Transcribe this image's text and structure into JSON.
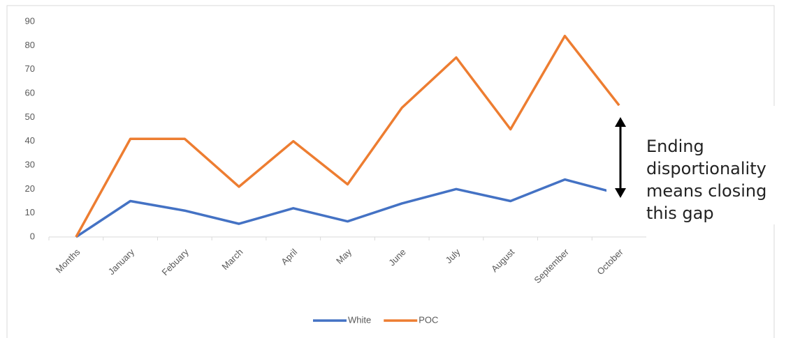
{
  "chart_data": {
    "type": "line",
    "categories": [
      "Months",
      "January",
      "Febuary",
      "March",
      "April",
      "May",
      "June",
      "July",
      "August",
      "September",
      "October"
    ],
    "series": [
      {
        "name": "White",
        "color": "#4472c4",
        "values": [
          0,
          15,
          11,
          5.5,
          12,
          6.5,
          14,
          20,
          15,
          24,
          18
        ]
      },
      {
        "name": "POC",
        "color": "#ed7d31",
        "values": [
          0,
          41,
          41,
          21,
          40,
          22,
          54,
          75,
          45,
          84,
          55
        ]
      }
    ],
    "ylim": [
      0,
      90
    ],
    "yticks": [
      0,
      10,
      20,
      30,
      40,
      50,
      60,
      70,
      80,
      90
    ],
    "grid": false,
    "legend": "bottom",
    "annotation": "Ending disportionality means closing this gap"
  }
}
